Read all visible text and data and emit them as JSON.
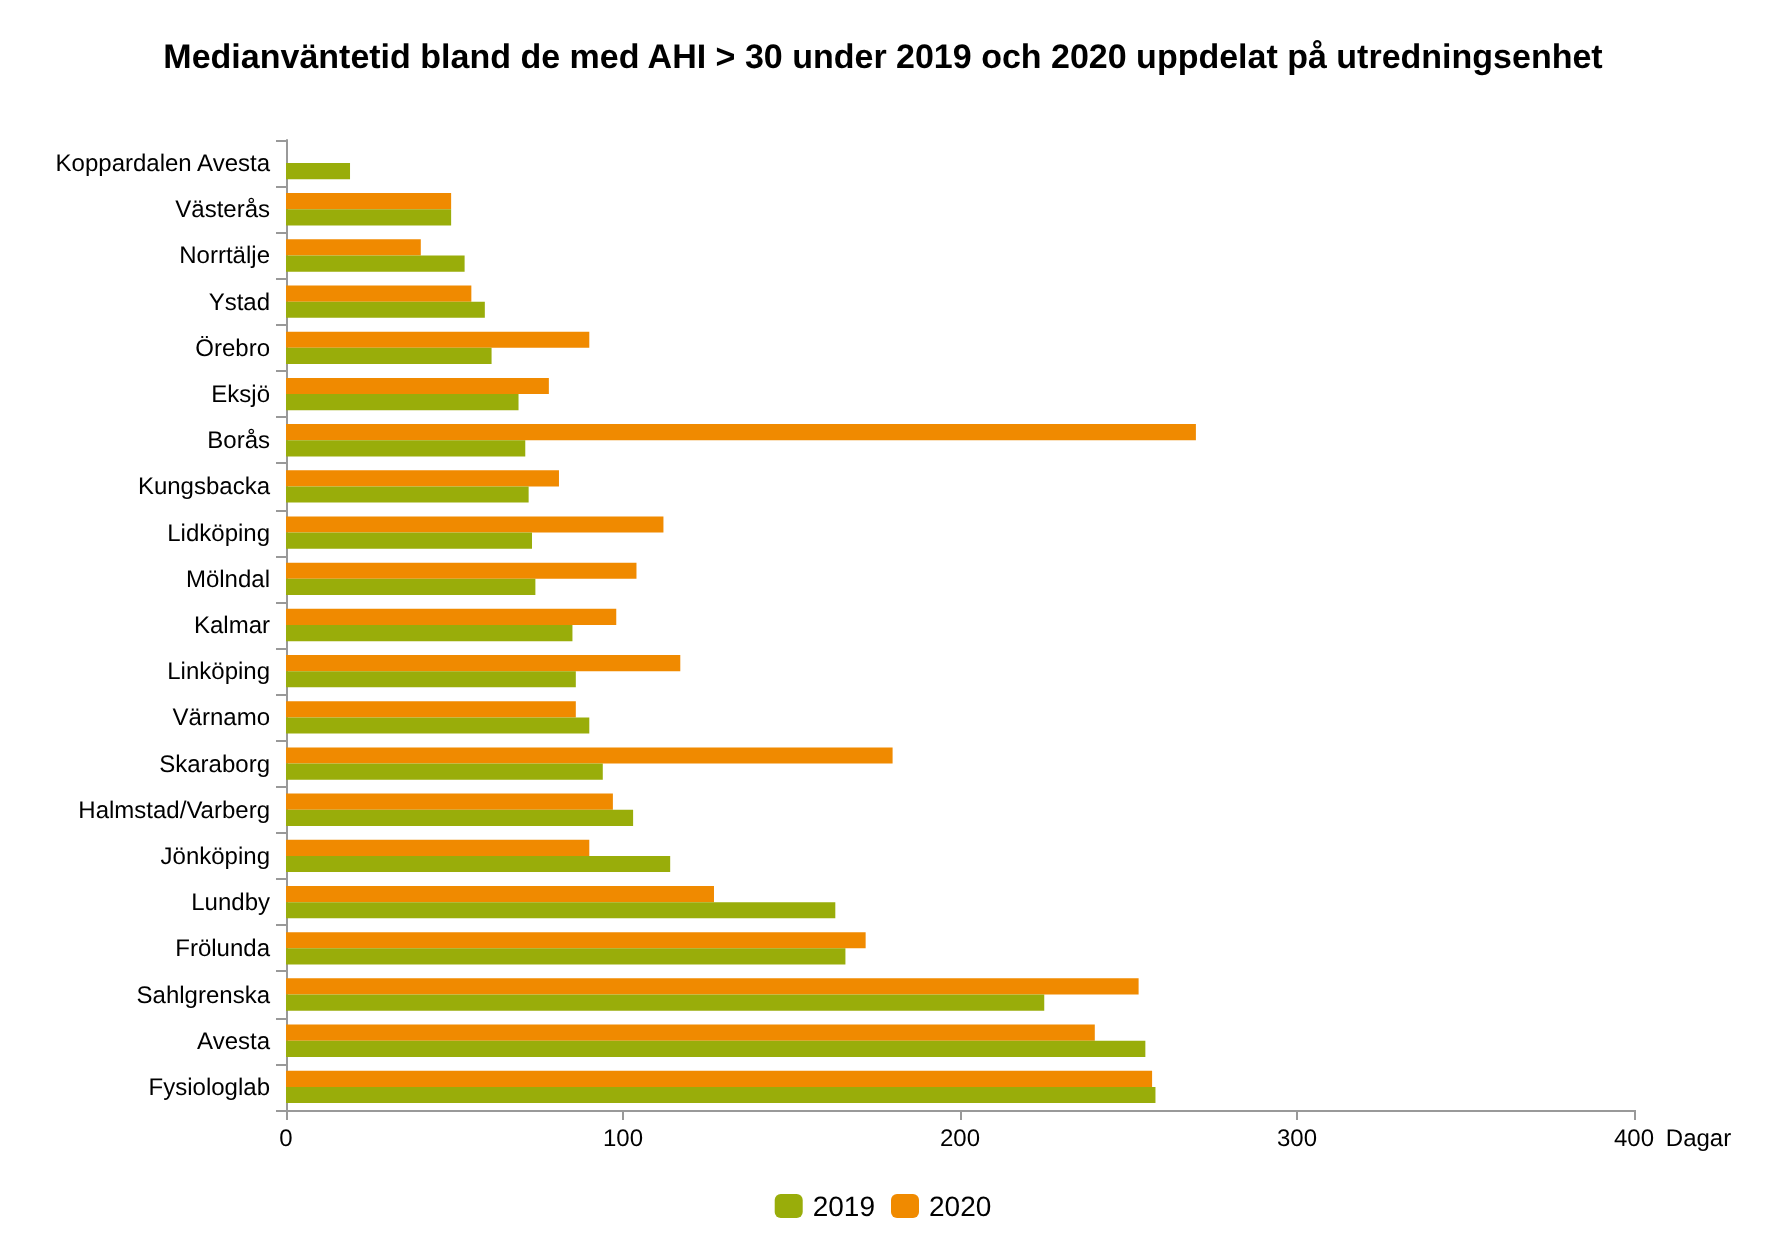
{
  "chart_data": {
    "type": "bar",
    "orientation": "horizontal",
    "title": "Medianväntetid bland de med AHI > 30 under 2019 och 2020 uppdelat på utredningsenhet",
    "xlabel": "Dagar",
    "categories": [
      "Koppardalen Avesta",
      "Västerås",
      "Norrtälje",
      "Ystad",
      "Örebro",
      "Eksjö",
      "Borås",
      "Kungsbacka",
      "Lidköping",
      "Mölndal",
      "Kalmar",
      "Linköping",
      "Värnamo",
      "Skaraborg",
      "Halmstad/Varberg",
      "Jönköping",
      "Lundby",
      "Frölunda",
      "Sahlgrenska",
      "Avesta",
      "Fysiologlab"
    ],
    "series": [
      {
        "name": "2019",
        "color": "#99ad0a",
        "values": [
          19,
          49,
          53,
          59,
          61,
          69,
          71,
          72,
          73,
          74,
          85,
          86,
          90,
          94,
          103,
          114,
          163,
          166,
          225,
          255,
          258
        ]
      },
      {
        "name": "2020",
        "color": "#f08a00",
        "values": [
          null,
          49,
          40,
          55,
          90,
          78,
          270,
          81,
          112,
          104,
          98,
          117,
          86,
          180,
          97,
          90,
          127,
          172,
          253,
          240,
          257
        ]
      }
    ],
    "xlim": [
      0,
      400
    ],
    "xticks": [
      0,
      100,
      200,
      300,
      400
    ],
    "grid": false,
    "legend": "bottom"
  }
}
